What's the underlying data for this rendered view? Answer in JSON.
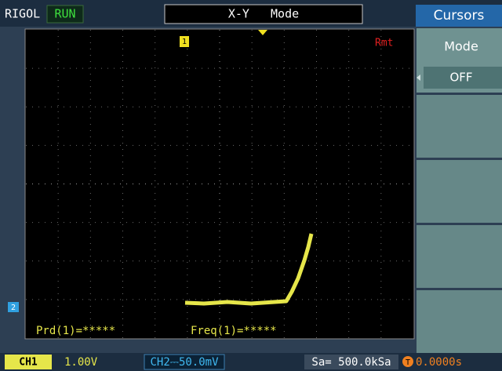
{
  "status_bar": {
    "brand": "RIGOL",
    "state": "RUN",
    "mode_title": "X-Y   Mode"
  },
  "menu": {
    "title": "Cursors",
    "items": [
      {
        "label": "Mode",
        "value": "OFF"
      }
    ]
  },
  "screen": {
    "remote": "Rmt",
    "ch1_marker": "1",
    "ch2_marker": "2",
    "measure_period": "Prd(1)=*****",
    "measure_freq": "Freq(1)=*****"
  },
  "bottom_bar": {
    "ch1_label": "CH1",
    "ch1_scale": "1.00V",
    "ch2_label": "CH2⎓50.0mV",
    "sample_rate": "Sa= 500.0kSa",
    "trigger_icon": "T",
    "time_offset": "0.0000s"
  }
}
